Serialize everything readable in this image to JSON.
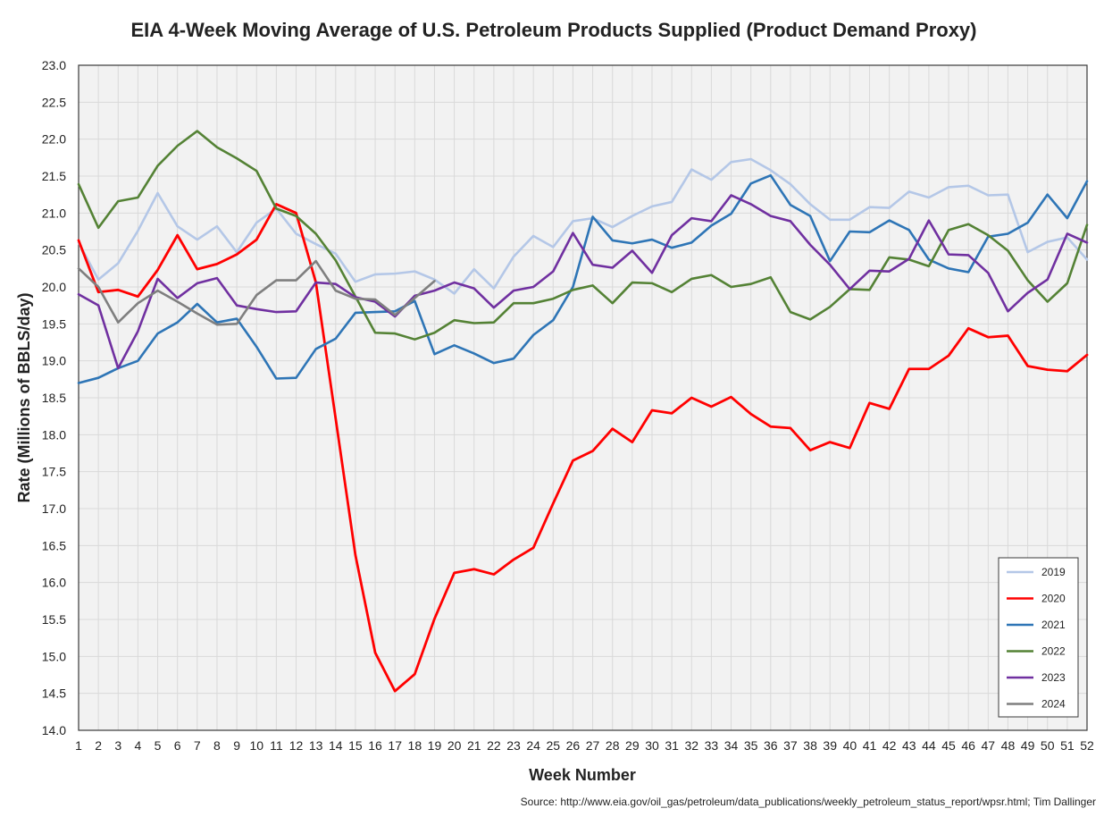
{
  "chart_data": {
    "type": "line",
    "title": "EIA 4-Week Moving Average of U.S. Petroleum Products Supplied (Product Demand Proxy)",
    "xlabel": "Week Number",
    "ylabel": "Rate (Millions of BBLS/day)",
    "source": "Source: http://www.eia.gov/oil_gas/petroleum/data_publications/weekly_petroleum_status_report/wpsr.html; Tim Dallinger",
    "xlim": [
      1,
      52
    ],
    "ylim": [
      14.0,
      23.0
    ],
    "ytick_step": 0.5,
    "grid": true,
    "legend_position": "bottom-right",
    "series": [
      {
        "name": "2019",
        "color": "#b4c7e7",
        "values": [
          20.6,
          20.1,
          20.32,
          20.76,
          21.27,
          20.82,
          20.64,
          20.82,
          20.47,
          20.87,
          21.06,
          20.72,
          20.58,
          20.45,
          20.07,
          20.17,
          20.18,
          20.21,
          20.1,
          19.91,
          20.24,
          19.98,
          20.41,
          20.69,
          20.54,
          20.89,
          20.93,
          20.81,
          20.96,
          21.09,
          21.15,
          21.59,
          21.45,
          21.69,
          21.73,
          21.58,
          21.39,
          21.12,
          20.91,
          20.91,
          21.08,
          21.07,
          21.29,
          21.21,
          21.35,
          21.37,
          21.24,
          21.25,
          20.47,
          20.61,
          20.67,
          20.37
        ]
      },
      {
        "name": "2020",
        "color": "#ff0000",
        "values": [
          20.63,
          19.93,
          19.96,
          19.87,
          20.23,
          20.7,
          20.24,
          20.31,
          20.44,
          20.64,
          21.12,
          21.0,
          20.06,
          18.22,
          16.37,
          15.05,
          14.53,
          14.76,
          15.51,
          16.13,
          16.18,
          16.11,
          16.31,
          16.47,
          17.07,
          17.65,
          17.78,
          18.08,
          17.9,
          18.33,
          18.29,
          18.5,
          18.38,
          18.51,
          18.28,
          18.11,
          18.09,
          17.79,
          17.9,
          17.82,
          18.43,
          18.35,
          18.89,
          18.89,
          19.07,
          19.44,
          19.32,
          19.34,
          18.93,
          18.88,
          18.86,
          19.08
        ]
      },
      {
        "name": "2021",
        "color": "#2e75b6",
        "values": [
          18.7,
          18.77,
          18.9,
          19.0,
          19.37,
          19.52,
          19.77,
          19.52,
          19.57,
          19.19,
          18.76,
          18.77,
          19.16,
          19.3,
          19.65,
          19.66,
          19.67,
          19.81,
          19.09,
          19.21,
          19.1,
          18.97,
          19.03,
          19.35,
          19.55,
          20.0,
          20.95,
          20.63,
          20.59,
          20.64,
          20.53,
          20.6,
          20.83,
          20.99,
          21.4,
          21.51,
          21.11,
          20.96,
          20.35,
          20.75,
          20.74,
          20.9,
          20.77,
          20.37,
          20.25,
          20.2,
          20.68,
          20.72,
          20.87,
          21.25,
          20.93,
          21.43
        ]
      },
      {
        "name": "2022",
        "color": "#548235",
        "values": [
          21.39,
          20.8,
          21.16,
          21.21,
          21.64,
          21.91,
          22.11,
          21.89,
          21.74,
          21.57,
          21.06,
          20.96,
          20.72,
          20.36,
          19.87,
          19.38,
          19.37,
          19.29,
          19.38,
          19.55,
          19.51,
          19.52,
          19.78,
          19.78,
          19.84,
          19.96,
          20.02,
          19.78,
          20.06,
          20.05,
          19.93,
          20.11,
          20.16,
          20.0,
          20.04,
          20.13,
          19.66,
          19.56,
          19.73,
          19.97,
          19.96,
          20.4,
          20.37,
          20.28,
          20.77,
          20.85,
          20.7,
          20.49,
          20.09,
          19.8,
          20.05,
          20.84
        ]
      },
      {
        "name": "2023",
        "color": "#7030a0",
        "values": [
          19.9,
          19.75,
          18.9,
          19.4,
          20.11,
          19.85,
          20.05,
          20.12,
          19.75,
          19.7,
          19.66,
          19.67,
          20.06,
          20.04,
          19.86,
          19.8,
          19.6,
          19.88,
          19.95,
          20.06,
          19.98,
          19.72,
          19.95,
          20.0,
          20.21,
          20.73,
          20.3,
          20.26,
          20.49,
          20.19,
          20.7,
          20.93,
          20.89,
          21.24,
          21.12,
          20.96,
          20.89,
          20.57,
          20.3,
          19.97,
          20.22,
          20.21,
          20.38,
          20.9,
          20.44,
          20.43,
          20.19,
          19.67,
          19.92,
          20.1,
          20.72,
          20.6
        ]
      },
      {
        "name": "2024",
        "color": "#7f7f7f",
        "values": [
          20.25,
          20.0,
          19.52,
          19.78,
          19.95,
          19.8,
          19.64,
          19.49,
          19.5,
          19.89,
          20.09,
          20.09,
          20.35,
          19.95,
          19.84,
          19.83,
          19.62,
          19.85,
          20.08
        ]
      }
    ]
  }
}
